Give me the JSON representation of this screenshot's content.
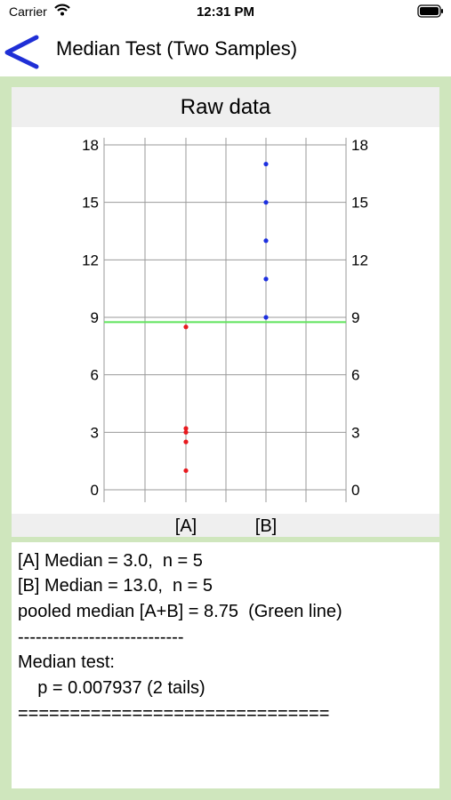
{
  "status_bar": {
    "carrier": "Carrier",
    "time": "12:31 PM"
  },
  "nav": {
    "title": "Median Test (Two Samples)"
  },
  "chart": {
    "header": "Raw data"
  },
  "chart_data": {
    "type": "scatter",
    "title": "Raw data",
    "categories": [
      "[A]",
      "[B]"
    ],
    "ylim": [
      0,
      18
    ],
    "yticks": [
      0,
      3,
      6,
      9,
      12,
      15,
      18
    ],
    "grid": true,
    "series": [
      {
        "category": "[A]",
        "color": "#e8191e",
        "values": [
          1,
          2.5,
          3,
          3.2,
          8.5
        ]
      },
      {
        "category": "[B]",
        "color": "#1c2fe0",
        "values": [
          9,
          11,
          13,
          15,
          17
        ]
      }
    ],
    "reference_line": {
      "y": 8.75,
      "color": "#5ee35a"
    }
  },
  "results": {
    "lines": [
      "[A] Median = 3.0,  n = 5",
      "[B] Median = 13.0,  n = 5",
      "pooled median [A+B] = 8.75  (Green line)",
      "----------------------------",
      "Median test:",
      "    p = 0.007937 (2 tails)",
      "=============================="
    ]
  },
  "colors": {
    "background": "#cfe6bd",
    "back_arrow": "#1f2fd6",
    "panel_header": "#efefef"
  }
}
